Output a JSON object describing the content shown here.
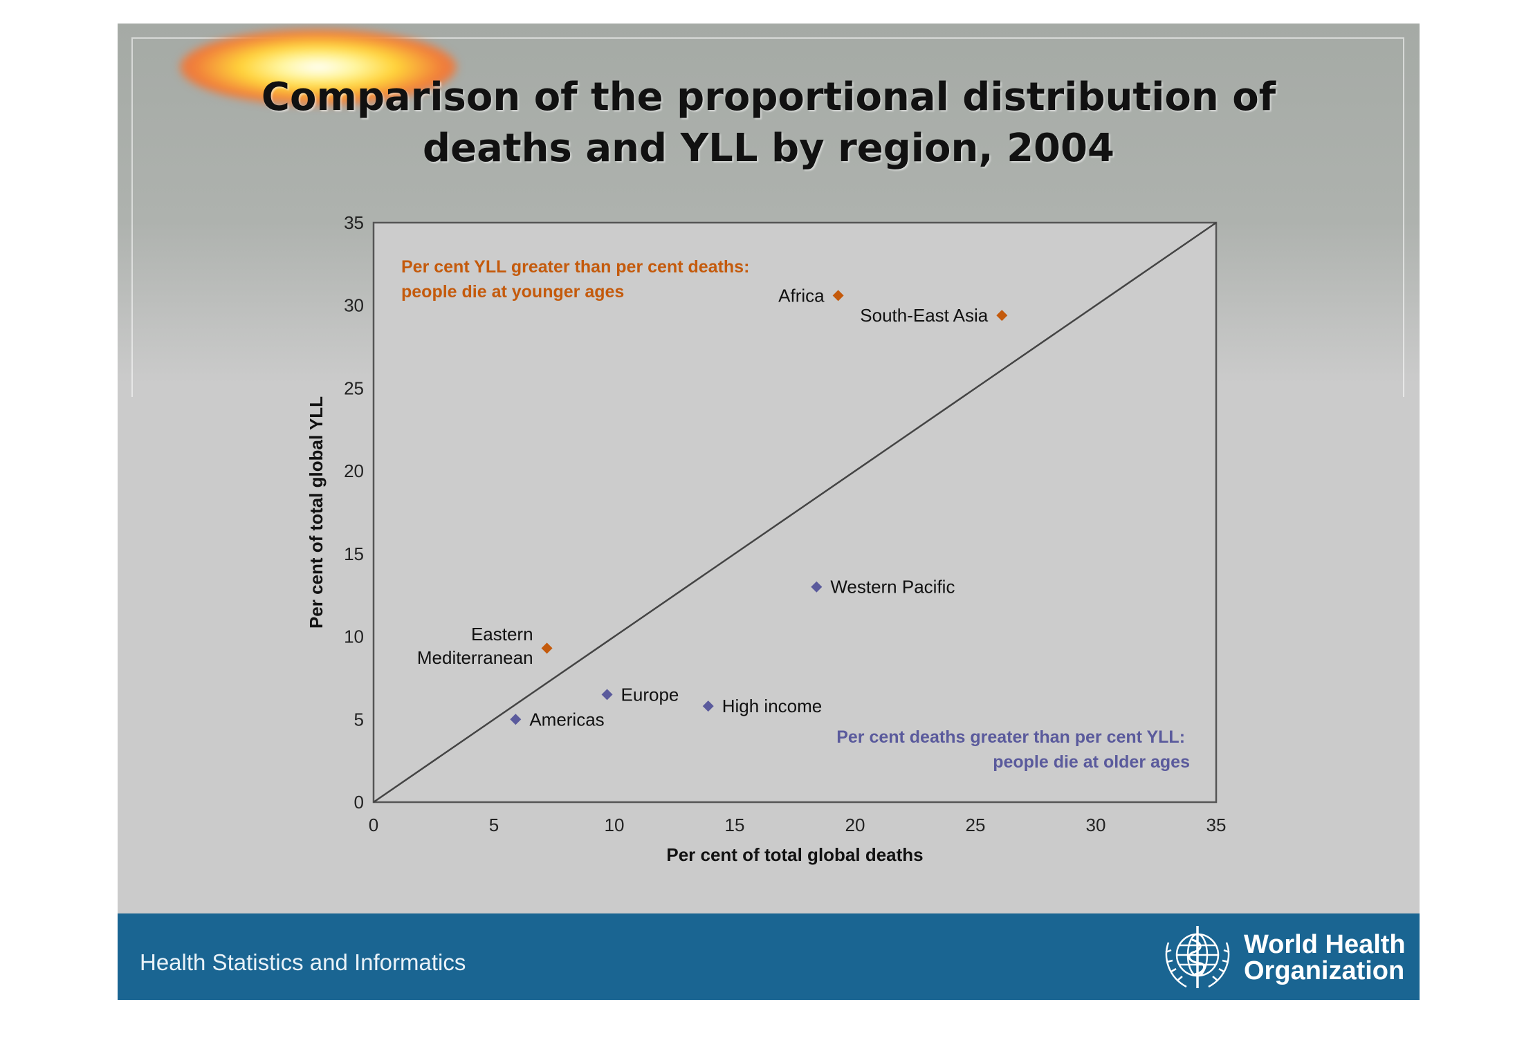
{
  "slide": {
    "title_lines": [
      "Comparison of the proportional distribution of",
      "deaths and YLL by region, 2004"
    ],
    "footer_text": "Health Statistics and Informatics",
    "logo_name_lines": [
      "World Health",
      "Organization"
    ],
    "colors": {
      "footer": "#1a6592",
      "orange": "#c45a0c",
      "purple": "#5a5a9c",
      "background": "#cbcbcb"
    }
  },
  "chart_data": {
    "type": "scatter",
    "xlabel": "Per cent of total global deaths",
    "ylabel": "Per cent of total global YLL",
    "xlim": [
      0,
      35
    ],
    "ylim": [
      0,
      35
    ],
    "xticks": [
      0,
      5,
      10,
      15,
      20,
      25,
      30,
      35
    ],
    "yticks": [
      0,
      5,
      10,
      15,
      20,
      25,
      30,
      35
    ],
    "grid": false,
    "reference_line": {
      "from": [
        0,
        0
      ],
      "to": [
        35,
        35
      ]
    },
    "annotations": {
      "upper": [
        "Per cent YLL greater than per cent deaths:",
        "people die at younger ages"
      ],
      "lower": [
        "Per cent deaths greater than per cent YLL:",
        "people die at older ages"
      ]
    },
    "points": [
      {
        "label_lines": [
          "Africa"
        ],
        "x": 19.3,
        "y": 30.6,
        "group": "younger",
        "label_side": "left"
      },
      {
        "label_lines": [
          "South-East Asia"
        ],
        "x": 26.1,
        "y": 29.4,
        "group": "younger",
        "label_side": "left"
      },
      {
        "label_lines": [
          "Eastern",
          "Mediterranean"
        ],
        "x": 7.2,
        "y": 9.3,
        "group": "younger",
        "label_side": "left"
      },
      {
        "label_lines": [
          "Western Pacific"
        ],
        "x": 18.4,
        "y": 13.0,
        "group": "older",
        "label_side": "right"
      },
      {
        "label_lines": [
          "Europe"
        ],
        "x": 9.7,
        "y": 6.5,
        "group": "older",
        "label_side": "right"
      },
      {
        "label_lines": [
          "High income"
        ],
        "x": 13.9,
        "y": 5.8,
        "group": "older",
        "label_side": "right"
      },
      {
        "label_lines": [
          "Americas"
        ],
        "x": 5.9,
        "y": 5.0,
        "group": "older",
        "label_side": "right"
      }
    ]
  }
}
